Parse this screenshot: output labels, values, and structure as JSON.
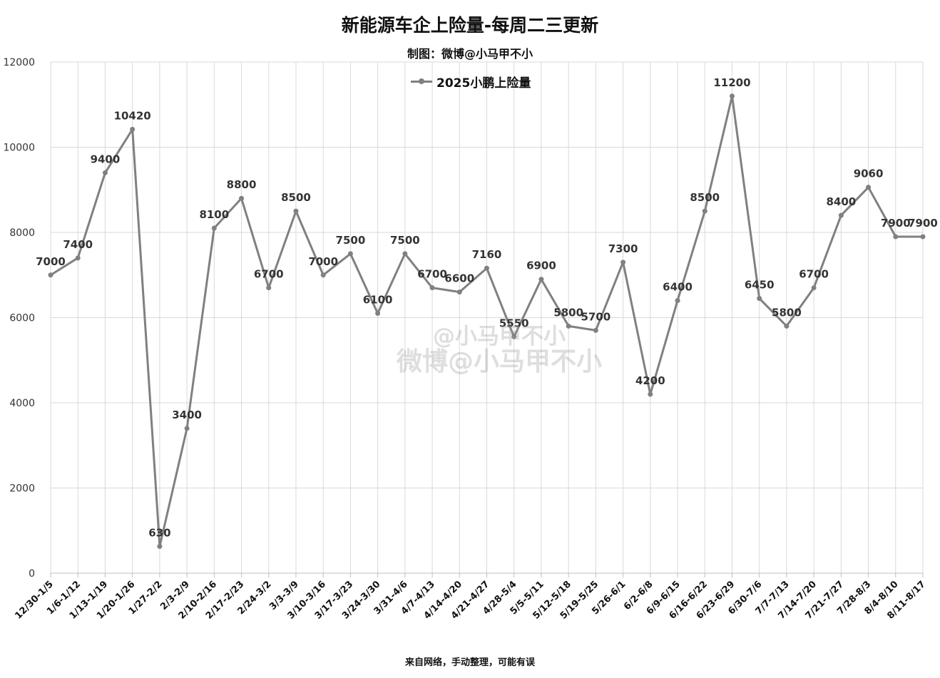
{
  "chart_data": {
    "type": "line",
    "title": "新能源车企上险量-每周二三更新",
    "subtitle": "制图：微博@小马甲不小",
    "footer": "来自网络，手动整理，可能有误",
    "watermark": {
      "line1": "@小马甲不小",
      "line2": "微博@小马甲不小"
    },
    "legend_position": "top-center",
    "grid": true,
    "ylim": [
      0,
      12000
    ],
    "yticks": [
      0,
      2000,
      4000,
      6000,
      8000,
      10000,
      12000
    ],
    "series_color": "#808080",
    "categories": [
      "12/30-1/5",
      "1/6-1/12",
      "1/13-1/19",
      "1/20-1/26",
      "1/27-2/2",
      "2/3-2/9",
      "2/10-2/16",
      "2/17-2/23",
      "2/24-3/2",
      "3/3-3/9",
      "3/10-3/16",
      "3/17-3/23",
      "3/24-3/30",
      "3/31-4/6",
      "4/7-4/13",
      "4/14-4/20",
      "4/21-4/27",
      "4/28-5/4",
      "5/5-5/11",
      "5/12-5/18",
      "5/19-5/25",
      "5/26-6/1",
      "6/2-6/8",
      "6/9-6/15",
      "6/16-6/22",
      "6/23-6/29",
      "6/30-7/6",
      "7/7-7/13",
      "7/14-7/20",
      "7/21-7/27",
      "7/28-8/3",
      "8/4-8/10",
      "8/11-8/17"
    ],
    "series": [
      {
        "name": "2025小鹏上险量",
        "values": [
          7000,
          7400,
          9400,
          10420,
          630,
          3400,
          8100,
          8800,
          6700,
          8500,
          7000,
          7500,
          6100,
          7500,
          6700,
          6600,
          7160,
          5550,
          6900,
          5800,
          5700,
          7300,
          4200,
          6400,
          8500,
          11200,
          6450,
          5800,
          6700,
          8400,
          9060,
          7900,
          7900
        ]
      }
    ]
  }
}
